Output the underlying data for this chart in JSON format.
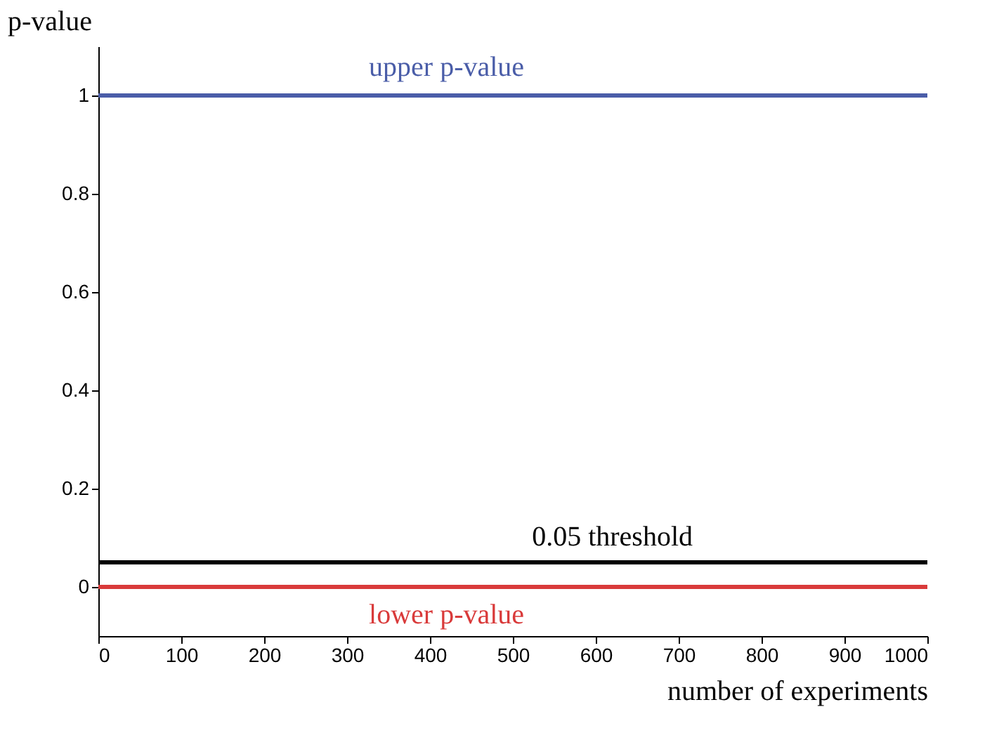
{
  "chart_data": {
    "type": "line",
    "xlabel": "number of experiments",
    "ylabel": "p-value",
    "series": [
      {
        "name": "upper p-value",
        "color": "#4a5da8",
        "values": [
          1,
          1
        ]
      },
      {
        "name": "lower p-value",
        "color": "#d93a3a",
        "values": [
          0,
          0
        ]
      }
    ],
    "x": [
      0,
      1000
    ],
    "ref_lines": [
      {
        "axis": "y",
        "value": 0.05,
        "label": "0.05 threshold",
        "color": "#000000",
        "line_style": "solid"
      }
    ],
    "xlim": [
      0,
      1000
    ],
    "ylim": [
      -0.1,
      1.1
    ],
    "xticks": [
      0,
      100,
      200,
      300,
      400,
      500,
      600,
      700,
      800,
      900,
      1000
    ],
    "yticks": [
      0,
      0.2,
      0.4,
      0.6,
      0.8,
      1
    ],
    "grid": false,
    "marker": "none",
    "line_style": "solid"
  }
}
